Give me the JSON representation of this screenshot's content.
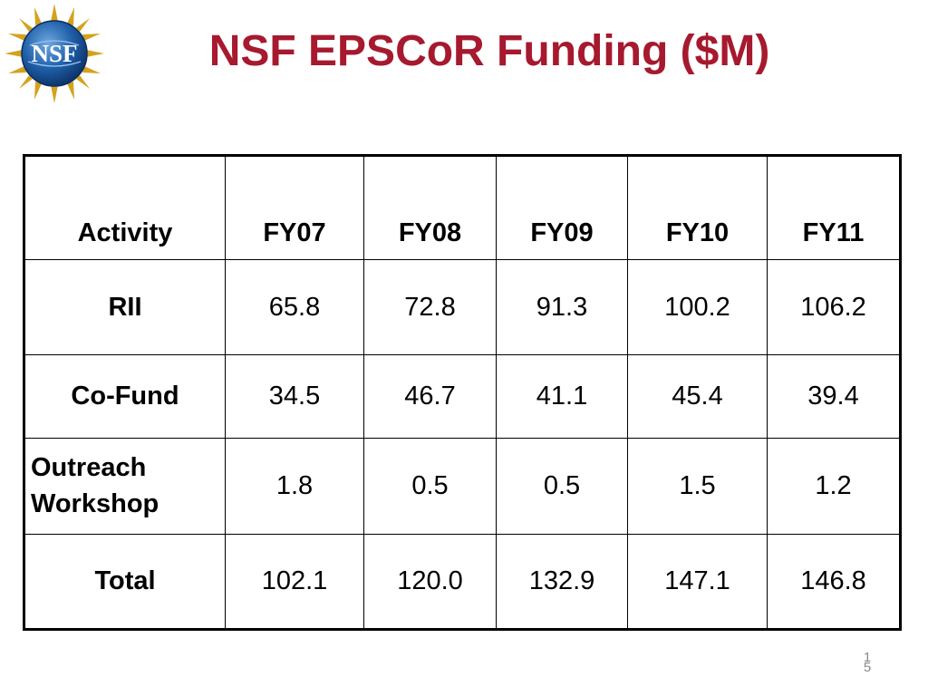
{
  "slide": {
    "title": "NSF EPSCoR Funding ($M)",
    "logo_text": "NSF",
    "page_number_top": "1",
    "page_number_bottom": "5"
  },
  "colors": {
    "title": "#a6192e",
    "logo_blue": "#1f5fa8",
    "logo_gold": "#d4a21e"
  },
  "table": {
    "headers": [
      "Activity",
      "FY07",
      "FY08",
      "FY09",
      "FY10",
      "FY11"
    ],
    "rows": [
      {
        "label": "RII",
        "values": [
          "65.8",
          "72.8",
          "91.3",
          "100.2",
          "106.2"
        ]
      },
      {
        "label": "Co-Fund",
        "values": [
          "34.5",
          "46.7",
          "41.1",
          "45.4",
          "39.4"
        ]
      },
      {
        "label_line1": "Outreach",
        "label_line2": "Workshop",
        "values": [
          "1.8",
          "0.5",
          "0.5",
          "1.5",
          "1.2"
        ]
      },
      {
        "label": "Total",
        "values": [
          "102.1",
          "120.0",
          "132.9",
          "147.1",
          "146.8"
        ]
      }
    ]
  }
}
